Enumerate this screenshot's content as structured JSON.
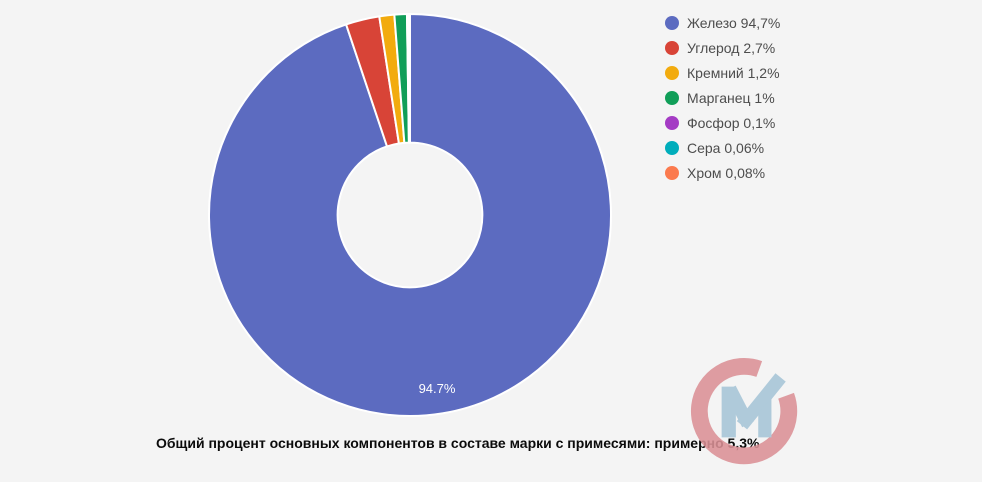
{
  "page": {
    "background": "#f4f4f4"
  },
  "chart_data": {
    "type": "pie",
    "donut": true,
    "pie_hole_ratio": 0.36,
    "start_angle_deg": 0,
    "direction": "clockwise",
    "legend_position": "right",
    "grid": false,
    "categories": [
      "Железо",
      "Углерод",
      "Кремний",
      "Марганец",
      "Фосфор",
      "Сера",
      "Хром"
    ],
    "values": [
      94.7,
      2.7,
      1.2,
      1,
      0.1,
      0.06,
      0.08
    ],
    "colors": [
      "#5c6bc0",
      "#d84437",
      "#f2ab0e",
      "#109e58",
      "#a43bc4",
      "#00adbb",
      "#fb7a4e"
    ],
    "slice_label": {
      "slice": "Железо",
      "text": "94.7%",
      "color": "#ffffff"
    },
    "title": "",
    "caption": "Общий процент основных компонентов в составе марки с примесями: примерно 5,3%"
  },
  "legend": {
    "items": [
      {
        "label": "Железо 94,7%",
        "color": "#5c6bc0"
      },
      {
        "label": "Углерод 2,7%",
        "color": "#d84437"
      },
      {
        "label": "Кремний 1,2%",
        "color": "#f2ab0e"
      },
      {
        "label": "Марганец 1%",
        "color": "#109e58"
      },
      {
        "label": "Фосфор 0,1%",
        "color": "#a43bc4"
      },
      {
        "label": "Сера 0,06%",
        "color": "#00adbb"
      },
      {
        "label": "Хром 0,08%",
        "color": "#fb7a4e"
      }
    ]
  },
  "caption": {
    "text": "Общий процент основных компонентов в составе марки с примесями: примерно 5,3%"
  },
  "watermark": {
    "name": "CM logo",
    "c_color": "#db9196",
    "m_color": "#a6c5d7"
  }
}
